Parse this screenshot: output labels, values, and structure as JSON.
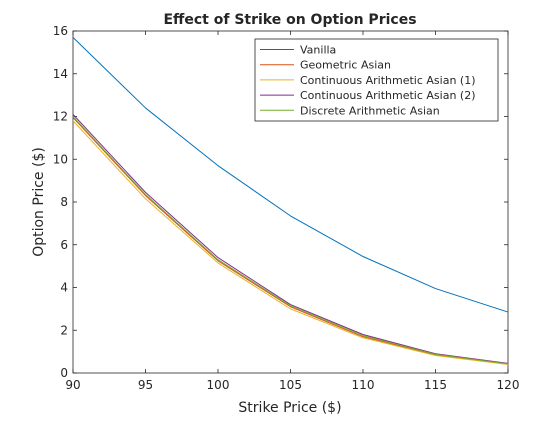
{
  "chart_data": {
    "type": "line",
    "title": "Effect of Strike on Option Prices",
    "xlabel": "Strike Price ($)",
    "ylabel": "Option Price ($)",
    "xlim": [
      90,
      120
    ],
    "ylim": [
      0,
      16
    ],
    "x": [
      90,
      95,
      100,
      105,
      110,
      115,
      120
    ],
    "x_ticks": [
      "90",
      "95",
      "100",
      "105",
      "110",
      "115",
      "120"
    ],
    "y_ticks": [
      "0",
      "2",
      "4",
      "6",
      "8",
      "10",
      "12",
      "14",
      "16"
    ],
    "grid": false,
    "legend_position": "top-right",
    "series": [
      {
        "name": "Vanilla",
        "color": "#0072BD",
        "values": [
          15.7,
          12.4,
          9.7,
          7.35,
          5.45,
          3.95,
          2.85
        ]
      },
      {
        "name": "Geometric Asian",
        "color": "#D95319",
        "values": [
          11.95,
          8.3,
          5.25,
          3.1,
          1.7,
          0.85,
          0.42
        ]
      },
      {
        "name": "Continuous Arithmetic Asian (1)",
        "color": "#EDB120",
        "values": [
          11.8,
          8.15,
          5.15,
          3.0,
          1.65,
          0.82,
          0.4
        ]
      },
      {
        "name": "Continuous Arithmetic Asian (2)",
        "color": "#7E2F8E",
        "values": [
          12.1,
          8.45,
          5.4,
          3.2,
          1.8,
          0.9,
          0.45
        ]
      },
      {
        "name": "Discrete Arithmetic Asian",
        "color": "#77AC30",
        "values": [
          12.0,
          8.35,
          5.3,
          3.15,
          1.75,
          0.87,
          0.43
        ]
      }
    ]
  }
}
